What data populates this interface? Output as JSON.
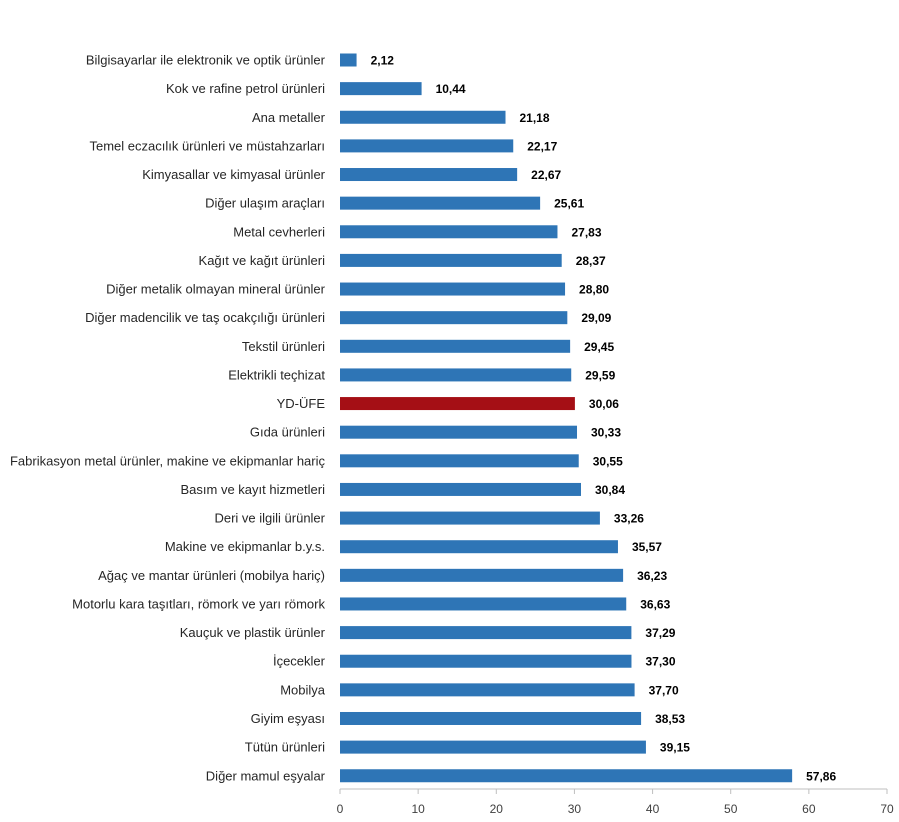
{
  "chart_data": {
    "type": "bar",
    "orientation": "horizontal",
    "categories": [
      "Bilgisayarlar ile elektronik ve optik ürünler",
      "Kok ve rafine petrol ürünleri",
      "Ana metaller",
      "Temel eczacılık ürünleri ve müstahzarları",
      "Kimyasallar ve kimyasal ürünler",
      "Diğer ulaşım araçları",
      "Metal cevherleri",
      "Kağıt ve kağıt ürünleri",
      "Diğer metalik olmayan mineral ürünler",
      "Diğer madencilik ve taş ocakçılığı ürünleri",
      "Tekstil ürünleri",
      "Elektrikli teçhizat",
      "YD-ÜFE",
      "Gıda ürünleri",
      "Fabrikasyon metal ürünler, makine ve ekipmanlar hariç",
      "Basım ve kayıt hizmetleri",
      "Deri ve ilgili ürünler",
      "Makine ve ekipmanlar b.y.s.",
      "Ağaç ve mantar ürünleri (mobilya hariç)",
      "Motorlu kara taşıtları, römork ve yarı römork",
      "Kauçuk ve plastik ürünler",
      "İçecekler",
      "Mobilya",
      "Giyim eşyası",
      "Tütün ürünleri",
      "Diğer mamul eşyalar"
    ],
    "values": [
      2.12,
      10.44,
      21.18,
      22.17,
      22.67,
      25.61,
      27.83,
      28.37,
      28.8,
      29.09,
      29.45,
      29.59,
      30.06,
      30.33,
      30.55,
      30.84,
      33.26,
      35.57,
      36.23,
      36.63,
      37.29,
      37.3,
      37.7,
      38.53,
      39.15,
      57.86
    ],
    "value_labels": [
      "2,12",
      "10,44",
      "21,18",
      "22,17",
      "22,67",
      "25,61",
      "27,83",
      "28,37",
      "28,80",
      "29,09",
      "29,45",
      "29,59",
      "30,06",
      "30,33",
      "30,55",
      "30,84",
      "33,26",
      "35,57",
      "36,23",
      "36,63",
      "37,29",
      "37,30",
      "37,70",
      "38,53",
      "39,15",
      "57,86"
    ],
    "xlim": [
      0,
      70
    ],
    "xticks": [
      0,
      10,
      20,
      30,
      40,
      50,
      60,
      70
    ],
    "highlight_category": "YD-ÜFE",
    "colors": {
      "bar": "#2e75b6",
      "highlight": "#a50f15",
      "axis": "#bfbfbf"
    },
    "grid": false,
    "legend": "none"
  }
}
